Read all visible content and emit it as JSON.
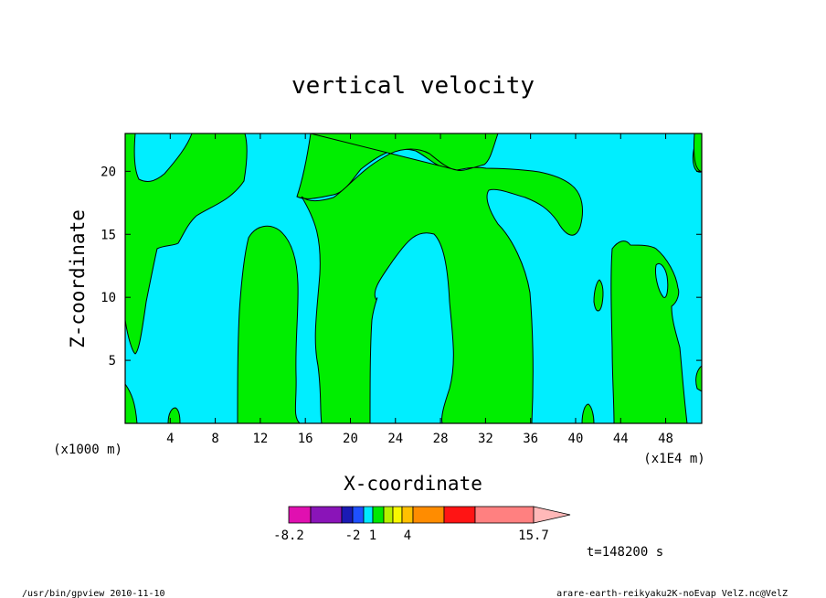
{
  "chart_data": {
    "type": "heatmap",
    "title": "vertical velocity",
    "xlabel": "X-coordinate",
    "ylabel": "Z-coordinate",
    "x_unit_label": "(x1000 m)",
    "x_axis_secondary_label": "(x1E4 m)",
    "xlim": [
      0,
      51.2
    ],
    "ylim": [
      0,
      23
    ],
    "x_ticks": [
      "4",
      "8",
      "12",
      "16",
      "20",
      "24",
      "28",
      "32",
      "36",
      "40",
      "44",
      "48"
    ],
    "y_ticks": [
      "5",
      "10",
      "15",
      "20"
    ],
    "colorbar": {
      "tick_labels": [
        "-8.2",
        "-2",
        "1",
        "4",
        "15.7"
      ],
      "colors": [
        "#e010b0",
        "#8a14b8",
        "#1a1ab4",
        "#1e50ff",
        "#00e8ff",
        "#00e800",
        "#b8f000",
        "#f8f800",
        "#ffc000",
        "#ff8c00",
        "#ff1414",
        "#ff8080",
        "#ffb8b8"
      ]
    },
    "regions": [
      {
        "value_range": "< 0",
        "color": "#00eeff",
        "description": "background field (cyan)"
      },
      {
        "value_range": "0 to 1",
        "color": "#00ee00",
        "description": "updraft columns (green)"
      }
    ],
    "time_label": "t=148200 s"
  },
  "footer": {
    "left": "/usr/bin/gpview   2010-11-10",
    "right": "arare-earth-reikyaku2K-noEvap_VelZ.nc@VelZ"
  }
}
